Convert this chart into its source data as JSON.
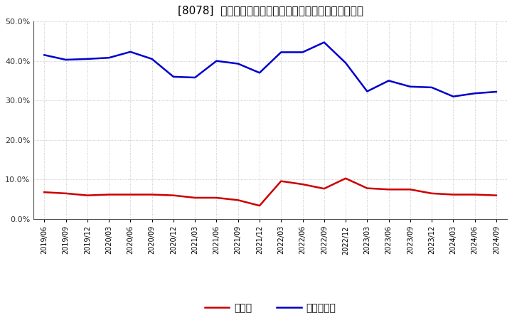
{
  "title": "[8078]  現預金、有利子負債の総資産に対する比率の推移",
  "x_labels": [
    "2019/06",
    "2019/09",
    "2019/12",
    "2020/03",
    "2020/06",
    "2020/09",
    "2020/12",
    "2021/03",
    "2021/06",
    "2021/09",
    "2021/12",
    "2022/03",
    "2022/06",
    "2022/09",
    "2022/12",
    "2023/03",
    "2023/06",
    "2023/09",
    "2023/12",
    "2024/03",
    "2024/06",
    "2024/09"
  ],
  "cash": [
    0.068,
    0.065,
    0.06,
    0.062,
    0.062,
    0.062,
    0.06,
    0.054,
    0.054,
    0.048,
    0.034,
    0.096,
    0.088,
    0.077,
    0.103,
    0.078,
    0.075,
    0.075,
    0.065,
    0.062,
    0.062,
    0.06
  ],
  "debt": [
    0.415,
    0.403,
    0.405,
    0.408,
    0.423,
    0.405,
    0.36,
    0.358,
    0.4,
    0.393,
    0.37,
    0.422,
    0.422,
    0.447,
    0.395,
    0.323,
    0.35,
    0.335,
    0.333,
    0.31,
    0.318,
    0.322
  ],
  "cash_color": "#cc0000",
  "debt_color": "#0000cc",
  "ylim": [
    0.0,
    0.5
  ],
  "yticks": [
    0.0,
    0.1,
    0.2,
    0.3,
    0.4,
    0.5
  ],
  "legend_cash": "現預金",
  "legend_debt": "有利子負債",
  "bg_color": "#ffffff",
  "grid_color": "#bbbbbb",
  "title_fontsize": 11,
  "linewidth": 1.8
}
